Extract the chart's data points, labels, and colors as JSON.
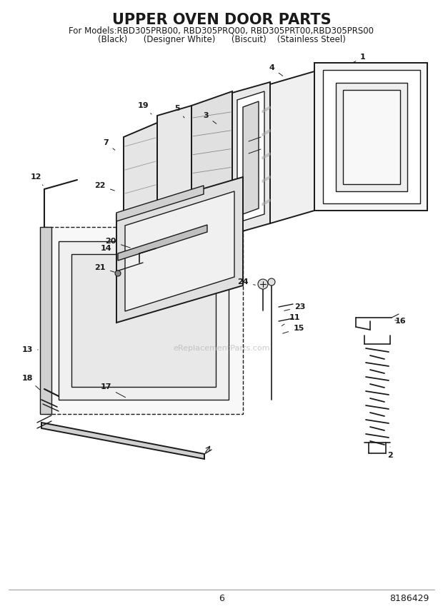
{
  "title": "UPPER OVEN DOOR PARTS",
  "subtitle_line1": "For Models:RBD305PRB00, RBD305PRQ00, RBD305PRT00,RBD305PRS00",
  "subtitle_line2": "(Black)      (Designer White)      (Biscuit)    (Stainless Steel)",
  "page_number": "6",
  "part_number": "8186429",
  "watermark": "eReplacementParts.com",
  "bg_color": "#ffffff",
  "line_color": "#1a1a1a",
  "fill_white": "#ffffff",
  "fill_light": "#f0f0f0",
  "fill_mid": "#d8d8d8",
  "title_fontsize": 15,
  "subtitle_fontsize": 8.5,
  "label_fontsize": 8,
  "footer_fontsize": 9
}
